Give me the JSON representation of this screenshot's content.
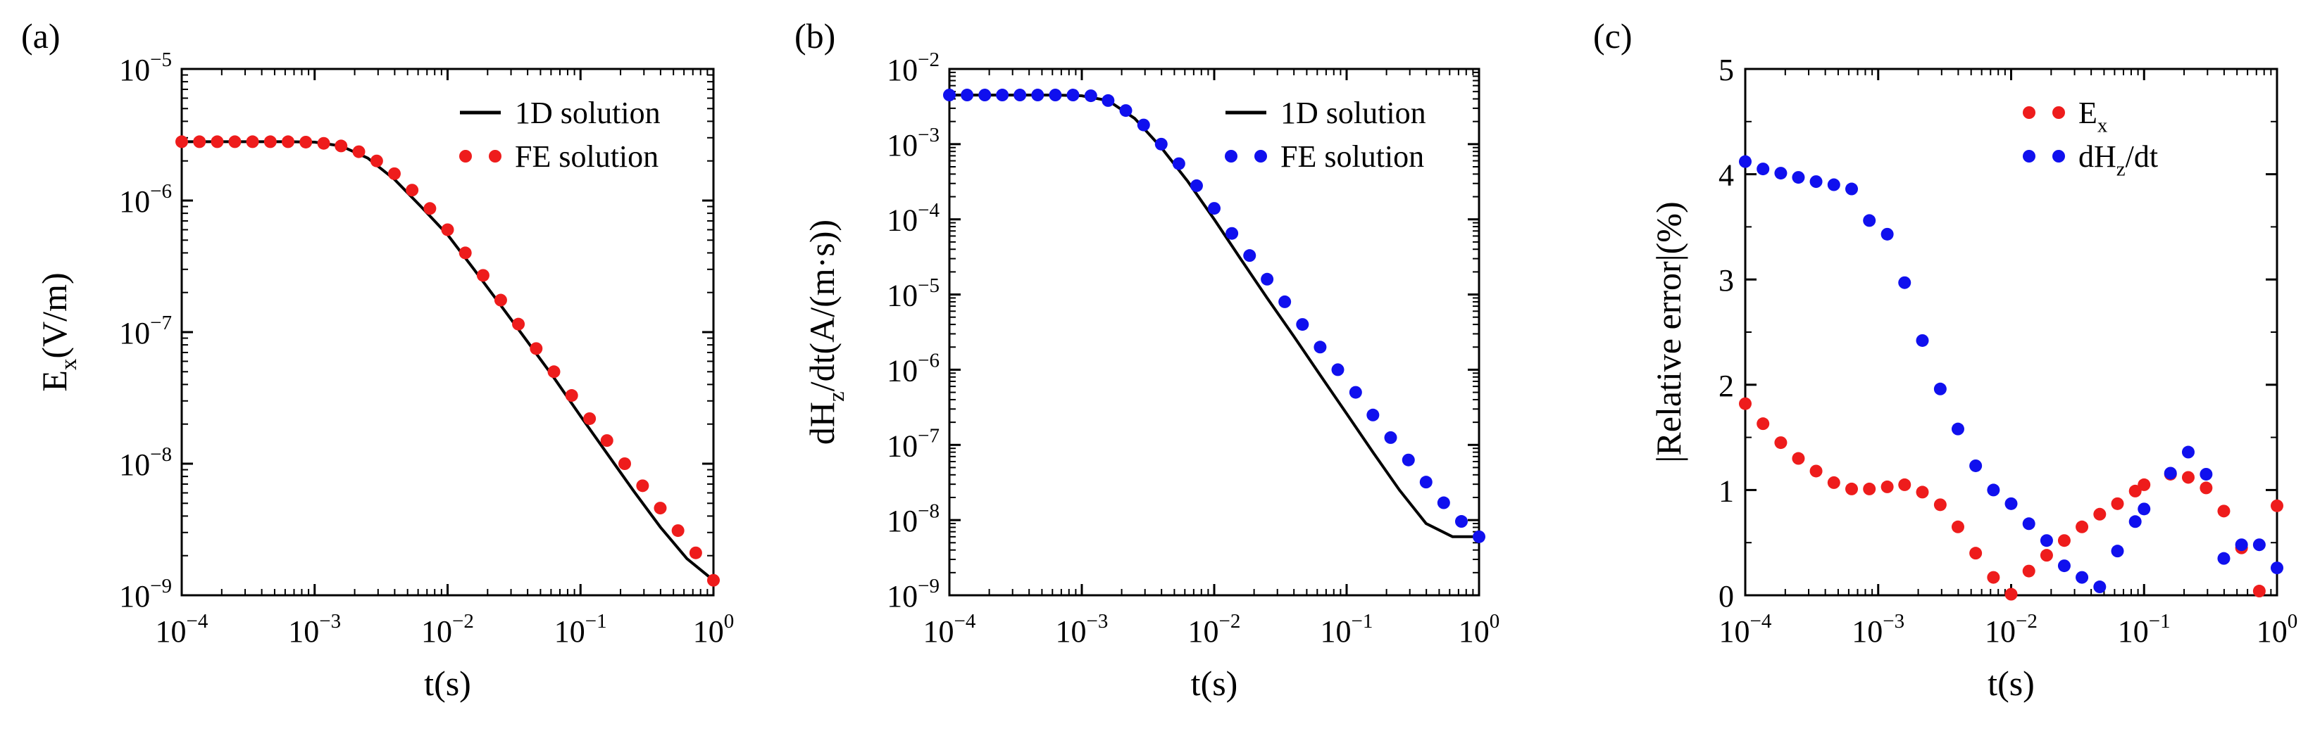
{
  "figure": {
    "panels": [
      "(a)",
      "(b)",
      "(c)"
    ]
  },
  "chart_data": [
    {
      "panel": "(a)",
      "type": "line",
      "xscale": "log",
      "yscale": "log",
      "xlim": [
        0.0001,
        1
      ],
      "ylim": [
        1e-09,
        1e-05
      ],
      "xlabel": "t(s)",
      "ylabel": "E_x(V/m)",
      "xticks": [
        "10^-4",
        "10^-3",
        "10^-2",
        "10^-1",
        "10^0"
      ],
      "yticks": [
        "10^-9",
        "10^-8",
        "10^-7",
        "10^-6",
        "10^-5"
      ],
      "legend": {
        "position": "top-right",
        "entries": [
          "1D solution",
          "FE solution"
        ]
      },
      "colors": {
        "line": "#000000",
        "points": "#ee1c1c"
      },
      "series": [
        {
          "name": "1D solution",
          "style": "line",
          "x": [
            0.0001,
            0.000158,
            0.000251,
            0.000398,
            0.000631,
            0.001,
            0.00158,
            0.00251,
            0.00398,
            0.00631,
            0.01,
            0.0158,
            0.0251,
            0.0398,
            0.0631,
            0.1,
            0.158,
            0.251,
            0.398,
            0.631,
            1
          ],
          "y": [
            2.8e-06,
            2.8e-06,
            2.8e-06,
            2.8e-06,
            2.8e-06,
            2.78e-06,
            2.6e-06,
            2.1e-06,
            1.45e-06,
            9e-07,
            5.5e-07,
            3e-07,
            1.6e-07,
            8.5e-08,
            4.5e-08,
            2.3e-08,
            1.2e-08,
            6.2e-09,
            3.3e-09,
            1.9e-09,
            1.3e-09
          ]
        },
        {
          "name": "FE solution",
          "style": "points",
          "x": [
            0.0001,
            0.000136,
            0.000185,
            0.000251,
            0.000341,
            0.000464,
            0.000631,
            0.000858,
            0.00117,
            0.00158,
            0.00215,
            0.00293,
            0.00398,
            0.00541,
            0.00736,
            0.01,
            0.0136,
            0.0185,
            0.0251,
            0.0341,
            0.0464,
            0.0631,
            0.0858,
            0.117,
            0.158,
            0.215,
            0.293,
            0.398,
            0.541,
            0.736,
            1
          ],
          "y": [
            2.8e-06,
            2.8e-06,
            2.8e-06,
            2.8e-06,
            2.8e-06,
            2.8e-06,
            2.8e-06,
            2.78e-06,
            2.72e-06,
            2.6e-06,
            2.35e-06,
            2e-06,
            1.6e-06,
            1.2e-06,
            8.7e-07,
            6e-07,
            4e-07,
            2.7e-07,
            1.75e-07,
            1.15e-07,
            7.5e-08,
            5e-08,
            3.3e-08,
            2.2e-08,
            1.5e-08,
            1e-08,
            6.8e-09,
            4.6e-09,
            3.1e-09,
            2.1e-09,
            1.3e-09
          ]
        }
      ]
    },
    {
      "panel": "(b)",
      "type": "line",
      "xscale": "log",
      "yscale": "log",
      "xlim": [
        0.0001,
        1
      ],
      "ylim": [
        1e-09,
        0.01
      ],
      "xlabel": "t(s)",
      "ylabel": "dH_z/dt(A/(m·s))",
      "xticks": [
        "10^-4",
        "10^-3",
        "10^-2",
        "10^-1",
        "10^0"
      ],
      "yticks": [
        "10^-9",
        "10^-8",
        "10^-7",
        "10^-6",
        "10^-5",
        "10^-4",
        "10^-3",
        "10^-2"
      ],
      "legend": {
        "position": "top-right",
        "entries": [
          "1D solution",
          "FE solution"
        ]
      },
      "colors": {
        "line": "#000000",
        "points": "#1010ee"
      },
      "series": [
        {
          "name": "1D solution",
          "style": "line",
          "x": [
            0.0001,
            0.000158,
            0.000251,
            0.000398,
            0.000631,
            0.001,
            0.00158,
            0.00251,
            0.00398,
            0.00631,
            0.01,
            0.0158,
            0.0251,
            0.0398,
            0.0631,
            0.1,
            0.158,
            0.251,
            0.398,
            0.631,
            1
          ],
          "y": [
            0.0045,
            0.0045,
            0.0045,
            0.0045,
            0.0045,
            0.0044,
            0.0038,
            0.0022,
            0.0009,
            0.00032,
            0.0001,
            3e-05,
            9e-06,
            2.8e-06,
            8.5e-07,
            2.6e-07,
            8e-08,
            2.5e-08,
            9e-09,
            6e-09,
            6e-09
          ]
        },
        {
          "name": "FE solution",
          "style": "points",
          "x": [
            0.0001,
            0.000136,
            0.000185,
            0.000251,
            0.000341,
            0.000464,
            0.000631,
            0.000858,
            0.00117,
            0.00158,
            0.00215,
            0.00293,
            0.00398,
            0.00541,
            0.00736,
            0.01,
            0.0136,
            0.0185,
            0.0251,
            0.0341,
            0.0464,
            0.0631,
            0.0858,
            0.117,
            0.158,
            0.215,
            0.293,
            0.398,
            0.541,
            0.736,
            1
          ],
          "y": [
            0.0045,
            0.0045,
            0.0045,
            0.0045,
            0.0045,
            0.0045,
            0.0045,
            0.0045,
            0.0044,
            0.0038,
            0.0028,
            0.0018,
            0.001,
            0.00055,
            0.00028,
            0.00014,
            6.5e-05,
            3.3e-05,
            1.6e-05,
            8e-06,
            4e-06,
            2e-06,
            1e-06,
            5e-07,
            2.5e-07,
            1.25e-07,
            6.3e-08,
            3.2e-08,
            1.7e-08,
            9.6e-09,
            6e-09
          ]
        }
      ]
    },
    {
      "panel": "(c)",
      "type": "scatter",
      "xscale": "log",
      "yscale": "linear",
      "xlim": [
        0.0001,
        1
      ],
      "ylim": [
        0,
        5
      ],
      "xlabel": "t(s)",
      "ylabel": "|Relative error|(%)",
      "xticks": [
        "10^-4",
        "10^-3",
        "10^-2",
        "10^-1",
        "10^0"
      ],
      "yticks": [
        "0",
        "1",
        "2",
        "3",
        "4",
        "5"
      ],
      "legend": {
        "position": "top-right",
        "entries": [
          "E_x",
          "dH_z/dt"
        ]
      },
      "colors": {
        "E_x": "#ee1c1c",
        "dH_z/dt": "#1010ee"
      },
      "series": [
        {
          "name": "E_x",
          "x": [
            0.0001,
            0.000136,
            0.000185,
            0.000251,
            0.000341,
            0.000464,
            0.000631,
            0.000858,
            0.00117,
            0.00158,
            0.00215,
            0.00293,
            0.00398,
            0.00541,
            0.00736,
            0.01,
            0.0136,
            0.0185,
            0.0251,
            0.0341,
            0.0464,
            0.0631,
            0.0858,
            0.1,
            0.158,
            0.215,
            0.293,
            0.398,
            0.541,
            0.736,
            1
          ],
          "y": [
            1.82,
            1.63,
            1.45,
            1.3,
            1.18,
            1.07,
            1.01,
            1.01,
            1.03,
            1.05,
            0.98,
            0.86,
            0.65,
            0.4,
            0.17,
            0.01,
            0.23,
            0.38,
            0.52,
            0.65,
            0.77,
            0.87,
            0.99,
            1.05,
            1.15,
            1.12,
            1.02,
            0.8,
            0.45,
            0.04,
            0.85
          ]
        },
        {
          "name": "dH_z/dt",
          "x": [
            0.0001,
            0.000136,
            0.000185,
            0.000251,
            0.000341,
            0.000464,
            0.000631,
            0.000858,
            0.00117,
            0.00158,
            0.00215,
            0.00293,
            0.00398,
            0.00541,
            0.00736,
            0.01,
            0.0136,
            0.0185,
            0.0251,
            0.0341,
            0.0464,
            0.0631,
            0.0858,
            0.1,
            0.158,
            0.215,
            0.293,
            0.398,
            0.541,
            0.736,
            1
          ],
          "y": [
            4.12,
            4.05,
            4.01,
            3.97,
            3.93,
            3.9,
            3.86,
            3.56,
            3.43,
            2.97,
            2.42,
            1.96,
            1.58,
            1.23,
            1.0,
            0.87,
            0.68,
            0.52,
            0.28,
            0.17,
            0.08,
            0.42,
            0.7,
            0.82,
            1.16,
            1.36,
            1.15,
            0.35,
            0.48,
            0.48,
            0.26
          ]
        }
      ]
    }
  ]
}
